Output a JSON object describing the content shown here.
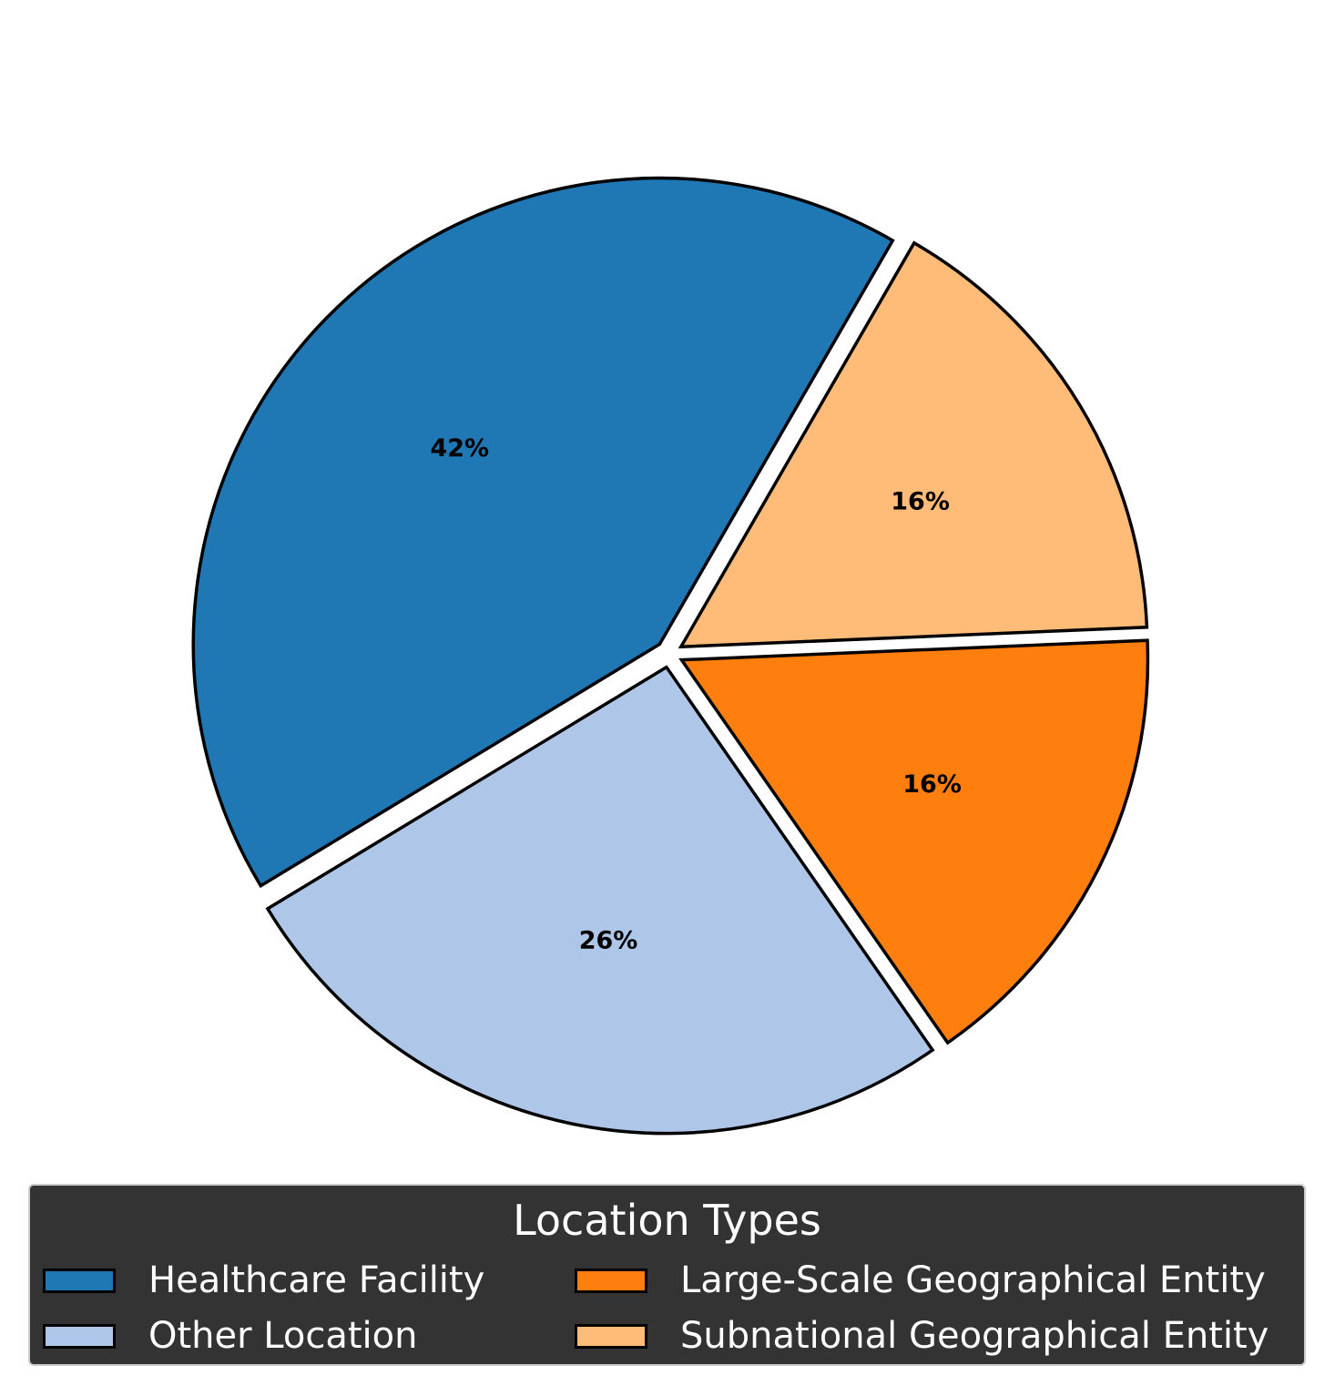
{
  "chart_data": {
    "type": "pie",
    "slices": [
      {
        "label": "Healthcare Facility",
        "value": 42,
        "text": "42%",
        "color": "#1f77b4"
      },
      {
        "label": "Other Location",
        "value": 26,
        "text": "26%",
        "color": "#aec7e8"
      },
      {
        "label": "Large-Scale Geographical Entity",
        "value": 16,
        "text": "16%",
        "color": "#ff7f0e"
      },
      {
        "label": "Subnational Geographical Entity",
        "value": 16,
        "text": "16%",
        "color": "#ffbb78"
      }
    ],
    "legend": {
      "title": "Location Types",
      "placement": "bottom-center",
      "columns": 2,
      "background": "#333333",
      "text_color": "#ffffff"
    },
    "edge_color": "#000000",
    "exploded": true
  }
}
